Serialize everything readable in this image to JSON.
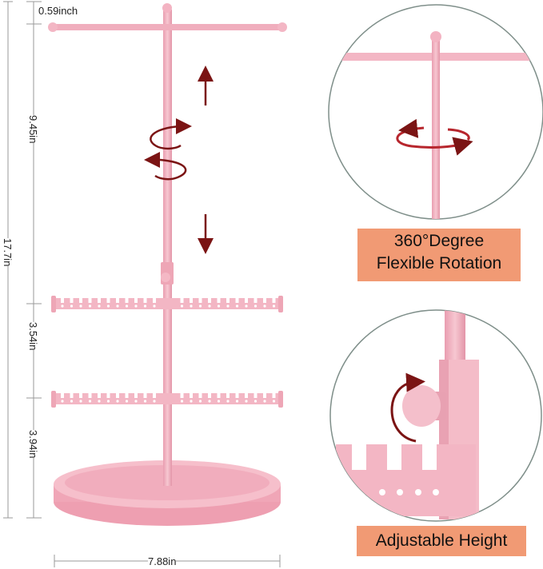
{
  "dimensions": {
    "top_gap": "0.59inch",
    "upper_height": "9.45in",
    "total_height": "17.7in",
    "tier_gap": "3.54in",
    "lower_height": "3.94in",
    "base_width": "7.88in"
  },
  "features": [
    {
      "title_line1": "360°Degree",
      "title_line2": "Flexible Rotation"
    },
    {
      "title": "Adjustable Height"
    }
  ],
  "colors": {
    "product_pink": "#f3b9c4",
    "product_shade": "#e79aab",
    "arrow_red": "#7b1414",
    "badge_orange": "#f19a74"
  }
}
